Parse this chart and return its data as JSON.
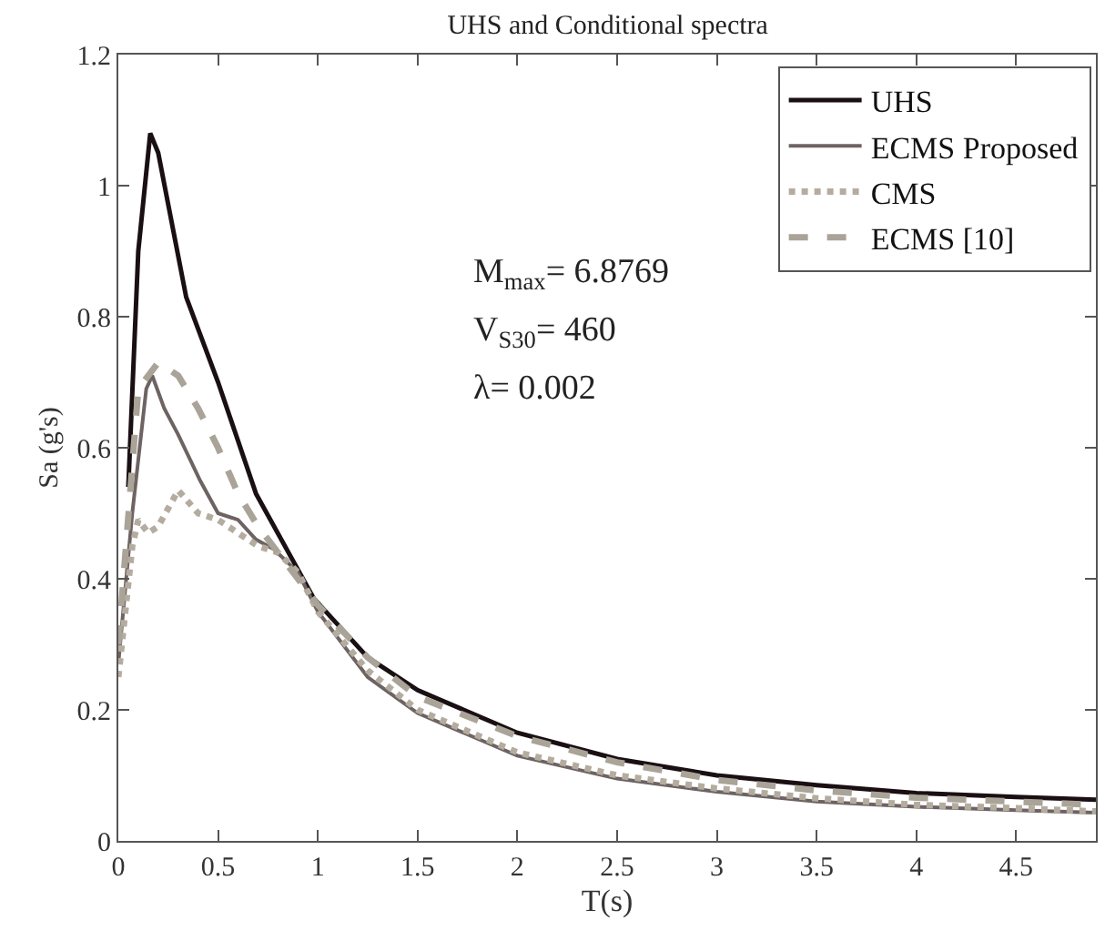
{
  "chart_data": {
    "type": "line",
    "title": "UHS and Conditional spectra",
    "xlabel": "T(s)",
    "ylabel": "Sa (g's)",
    "xlim": [
      0,
      4.9
    ],
    "ylim": [
      0,
      1.2
    ],
    "xticks": [
      0,
      0.5,
      1,
      1.5,
      2,
      2.5,
      3,
      3.5,
      4,
      4.5
    ],
    "yticks": [
      0,
      0.2,
      0.4,
      0.6,
      0.8,
      1,
      1.2
    ],
    "legend": "top right",
    "annotations": [
      "M$_{max}$= 6.8769",
      "V$_{S30}$= 460",
      "λ= 0.002"
    ],
    "series": [
      {
        "name": "UHS",
        "color": "#1a0f12",
        "line_style": "solid",
        "x": [
          0.05,
          0.1,
          0.16,
          0.2,
          0.34,
          0.5,
          0.69,
          0.98,
          1.25,
          1.5,
          2,
          2.5,
          3,
          3.5,
          4,
          4.5,
          4.9
        ],
        "values": [
          0.54,
          0.9,
          1.08,
          1.05,
          0.83,
          0.7,
          0.53,
          0.37,
          0.28,
          0.23,
          0.165,
          0.125,
          0.1,
          0.085,
          0.073,
          0.067,
          0.063
        ]
      },
      {
        "name": "ECMS Proposed",
        "color": "#6e6363",
        "line_style": "solid",
        "x": [
          0.0,
          0.07,
          0.14,
          0.17,
          0.23,
          0.3,
          0.41,
          0.5,
          0.6,
          0.69,
          0.78,
          0.9,
          1.0,
          1.25,
          1.5,
          2,
          2.5,
          3,
          3.5,
          4,
          4.5,
          4.9
        ],
        "values": [
          0.27,
          0.5,
          0.69,
          0.71,
          0.66,
          0.62,
          0.55,
          0.5,
          0.49,
          0.46,
          0.445,
          0.41,
          0.35,
          0.25,
          0.195,
          0.13,
          0.095,
          0.075,
          0.06,
          0.052,
          0.047,
          0.043
        ]
      },
      {
        "name": "CMS",
        "color": "#b5aca0",
        "line_style": "dotted",
        "x": [
          0.0,
          0.07,
          0.1,
          0.15,
          0.2,
          0.3,
          0.4,
          0.5,
          0.6,
          0.7,
          0.8,
          0.9,
          1.0,
          1.25,
          1.5,
          2,
          2.5,
          3,
          3.5,
          4,
          4.5,
          4.9
        ],
        "values": [
          0.25,
          0.45,
          0.49,
          0.47,
          0.48,
          0.535,
          0.5,
          0.49,
          0.47,
          0.45,
          0.44,
          0.41,
          0.35,
          0.26,
          0.2,
          0.135,
          0.1,
          0.08,
          0.065,
          0.055,
          0.05,
          0.045
        ]
      },
      {
        "name": "ECMS [10]",
        "color": "#a9a398",
        "line_style": "dashed",
        "x": [
          0.0,
          0.1,
          0.2,
          0.3,
          0.4,
          0.5,
          0.6,
          0.7,
          0.8,
          0.9,
          1.0,
          1.25,
          1.5,
          2,
          2.5,
          3,
          3.5,
          4,
          4.5,
          4.9
        ],
        "values": [
          0.3,
          0.69,
          0.73,
          0.71,
          0.66,
          0.6,
          0.53,
          0.48,
          0.44,
          0.4,
          0.36,
          0.28,
          0.22,
          0.16,
          0.12,
          0.093,
          0.077,
          0.066,
          0.06,
          0.055
        ]
      }
    ]
  }
}
